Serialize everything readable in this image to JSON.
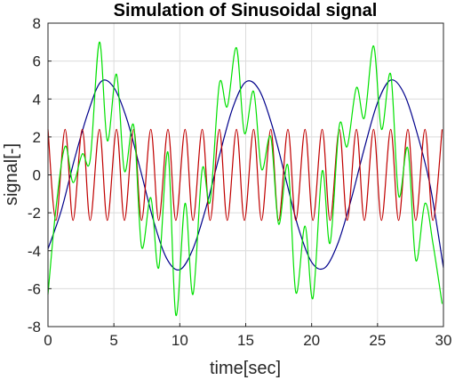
{
  "chart_data": {
    "type": "line",
    "title": "Simulation of Sinusoidal signal",
    "xlabel": "time[sec]",
    "ylabel": "signal[-]",
    "xlim": [
      0,
      30
    ],
    "ylim": [
      -8,
      8
    ],
    "xticks": [
      0,
      5,
      10,
      15,
      20,
      25,
      30
    ],
    "yticks": [
      8,
      6,
      4,
      2,
      0,
      -2,
      -4,
      -6,
      -8
    ],
    "grid": true,
    "legend": "none",
    "series": [
      {
        "color": "#00008b",
        "x": [
          0,
          1,
          2,
          3,
          4,
          5,
          6,
          7,
          8,
          9,
          10,
          11,
          12,
          13,
          14,
          15,
          16,
          17,
          18,
          19,
          20,
          21,
          22,
          23,
          24,
          25,
          26,
          27,
          28,
          29,
          30
        ],
        "values": [
          -3.9,
          -1.9,
          0.8,
          3.2,
          4.9,
          4.6,
          2.9,
          0.3,
          -2.4,
          -4.4,
          -5.0,
          -3.9,
          -1.7,
          1.0,
          3.5,
          4.9,
          4.5,
          2.6,
          -0.1,
          -2.8,
          -4.6,
          -4.9,
          -3.6,
          -1.3,
          1.4,
          3.8,
          5.0,
          4.3,
          2.2,
          -0.6,
          -4.9
        ]
      },
      {
        "color": "#c00000",
        "x": [
          0,
          0.6,
          1.3,
          1.9,
          2.6,
          3.2,
          3.9,
          4.5,
          5.2,
          5.8,
          6.5,
          7.1,
          7.8,
          8.4,
          9.1,
          9.7,
          10.4,
          11.0,
          11.7,
          12.3,
          13.0,
          13.6,
          14.3,
          14.9,
          15.6,
          16.2,
          16.9,
          17.5,
          18.2,
          18.8,
          19.5,
          20.1,
          20.8,
          21.4,
          22.1,
          22.7,
          23.4,
          24.0,
          24.7,
          25.3,
          26.0,
          26.6,
          27.3,
          27.9,
          28.6,
          29.2,
          29.9
        ],
        "values": [
          2.4,
          -2.4,
          2.4,
          -2.4,
          2.4,
          -2.4,
          2.4,
          -2.4,
          2.4,
          -2.4,
          2.4,
          -2.4,
          2.4,
          -2.4,
          2.4,
          -2.4,
          2.4,
          -2.4,
          2.4,
          -2.4,
          2.4,
          -2.4,
          2.4,
          -2.4,
          2.4,
          -2.4,
          2.4,
          -2.4,
          2.4,
          -2.4,
          2.4,
          -2.4,
          2.4,
          -2.4,
          2.4,
          -2.4,
          2.4,
          -2.4,
          2.4,
          -2.4,
          2.4,
          -2.4,
          2.4,
          -2.4,
          2.4,
          -2.4,
          2.4
        ]
      },
      {
        "color": "#00e000",
        "x": [
          0,
          0.6,
          1.3,
          1.9,
          2.6,
          3.2,
          3.9,
          4.5,
          5.2,
          5.8,
          6.5,
          7.1,
          7.8,
          8.4,
          9.1,
          9.7,
          10.4,
          11.0,
          11.7,
          12.3,
          13.0,
          13.6,
          14.3,
          14.9,
          15.6,
          16.2,
          16.9,
          17.5,
          18.2,
          18.8,
          19.5,
          20.1,
          20.8,
          21.4,
          22.1,
          22.7,
          23.4,
          24.0,
          24.7,
          25.3,
          26.0,
          26.6,
          27.3,
          27.9,
          28.6,
          29.2,
          29.9
        ],
        "values": [
          -6.3,
          -1.8,
          1.5,
          -0.4,
          1.1,
          0.8,
          7.0,
          1.8,
          5.3,
          0.2,
          2.6,
          -3.8,
          -1.2,
          -4.9,
          1.2,
          -7.4,
          -1.5,
          -6.3,
          0.3,
          -1.4,
          4.8,
          3.6,
          6.7,
          2.2,
          4.4,
          0.3,
          2.0,
          -2.6,
          0.5,
          -6.2,
          -2.7,
          -6.5,
          0.2,
          -3.6,
          2.6,
          1.5,
          4.6,
          3.0,
          6.8,
          2.4,
          5.3,
          -1.1,
          1.4,
          -4.5,
          -1.5,
          -3.6,
          -6.8
        ]
      }
    ]
  }
}
